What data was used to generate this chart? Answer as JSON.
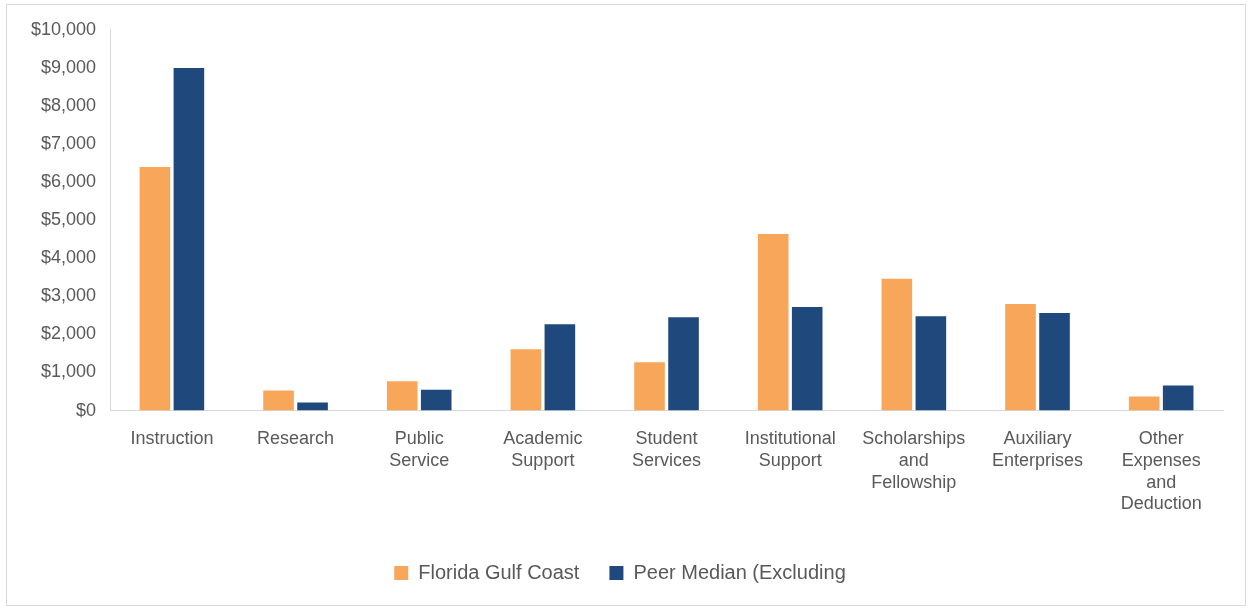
{
  "chart_data": {
    "type": "bar",
    "categories": [
      "Instruction",
      "Research",
      "Public Service",
      "Academic Support",
      "Student Services",
      "Institutional Support",
      "Scholarships and Fellowship",
      "Auxiliary Enterprises",
      "Other Expenses and Deduction"
    ],
    "series": [
      {
        "name": "Florida Gulf Coast",
        "color": "#f7a65a",
        "values": [
          6400,
          530,
          770,
          1610,
          1270,
          4640,
          3460,
          2800,
          370
        ]
      },
      {
        "name": "Peer Median (Excluding",
        "color": "#1f497d",
        "values": [
          9000,
          210,
          550,
          2270,
          2450,
          2720,
          2480,
          2560,
          660
        ]
      }
    ],
    "ylim": [
      0,
      10000
    ],
    "yticks": [
      {
        "value": 0,
        "label": "$0"
      },
      {
        "value": 1000,
        "label": "$1,000"
      },
      {
        "value": 2000,
        "label": "$2,000"
      },
      {
        "value": 3000,
        "label": "$3,000"
      },
      {
        "value": 4000,
        "label": "$4,000"
      },
      {
        "value": 5000,
        "label": "$5,000"
      },
      {
        "value": 6000,
        "label": "$6,000"
      },
      {
        "value": 7000,
        "label": "$7,000"
      },
      {
        "value": 8000,
        "label": "$8,000"
      },
      {
        "value": 9000,
        "label": "$9,000"
      },
      {
        "value": 10000,
        "label": "$10,000"
      }
    ],
    "grid": false,
    "legend": "bottom"
  }
}
